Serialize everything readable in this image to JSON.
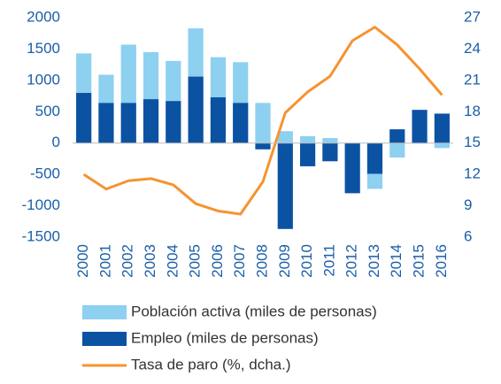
{
  "chart_data": {
    "type": "bar-line",
    "categories": [
      "2000",
      "2001",
      "2002",
      "2003",
      "2004",
      "2005",
      "2006",
      "2007",
      "2008",
      "2009",
      "2010",
      "2011",
      "2012",
      "2013",
      "2014",
      "2015",
      "2016"
    ],
    "series": [
      {
        "name": "Población activa (miles de personas)",
        "color": "#8dd0f0",
        "values": [
          1430,
          1090,
          1570,
          1450,
          1310,
          1830,
          1370,
          1290,
          640,
          190,
          110,
          80,
          -40,
          -730,
          -230,
          -10,
          -80
        ]
      },
      {
        "name": "Empleo (miles de personas)",
        "color": "#0c52a3",
        "values": [
          800,
          640,
          640,
          700,
          670,
          1060,
          730,
          640,
          -100,
          -1370,
          -370,
          -290,
          -800,
          -490,
          220,
          530,
          470
        ]
      },
      {
        "name": "Tasa de paro (%, dcha.)",
        "color": "#f59331",
        "axis": "y2",
        "values": [
          12.0,
          10.6,
          11.4,
          11.6,
          11.0,
          9.2,
          8.5,
          8.2,
          11.3,
          17.9,
          19.9,
          21.4,
          24.8,
          26.1,
          24.4,
          22.1,
          19.6
        ]
      }
    ],
    "ylim": [
      -1500,
      2000
    ],
    "yticks": [
      -1500,
      -1000,
      -500,
      0,
      500,
      1000,
      1500,
      2000
    ],
    "y2lim": [
      6,
      27
    ],
    "y2ticks": [
      6,
      9,
      12,
      15,
      18,
      21,
      24,
      27
    ],
    "grid": false
  }
}
